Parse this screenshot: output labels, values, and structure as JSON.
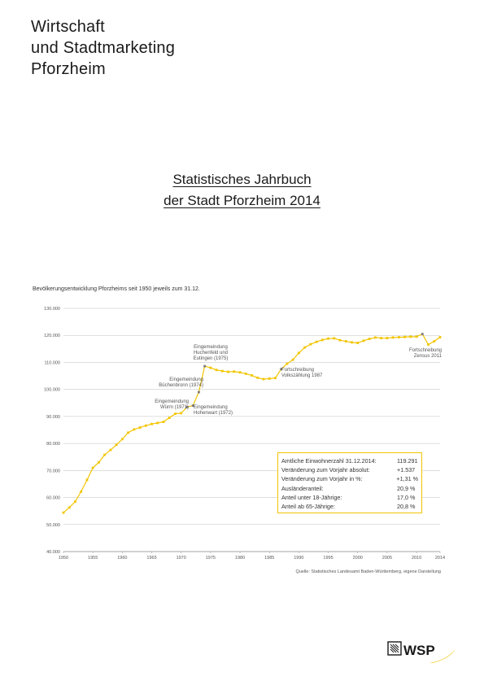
{
  "header": {
    "org_lines": [
      "Wirtschaft",
      "und Stadtmarketing",
      "Pforzheim"
    ]
  },
  "document": {
    "title_lines": [
      "Statistisches Jahrbuch",
      "der Stadt Pforzheim 2014"
    ]
  },
  "chart_caption": "Bevölkerungsentwicklung Pforzheims seit 1950 jeweils zum 31.12.",
  "chart_data": {
    "type": "line",
    "title": "",
    "xlabel": "",
    "ylabel": "",
    "x_ticks": [
      "1950",
      "1955",
      "1960",
      "1965",
      "1970",
      "1975",
      "1980",
      "1985",
      "1990",
      "1995",
      "2000",
      "2005",
      "2010",
      "2014"
    ],
    "y_ticks": [
      "40.000",
      "50.000",
      "60.000",
      "70.000",
      "80.000",
      "90.000",
      "100.000",
      "110.000",
      "120.000",
      "130.000"
    ],
    "ylim": [
      40000,
      130000
    ],
    "xlim": [
      1950,
      2014
    ],
    "grid": true,
    "series_color": "#f2c500",
    "marker_color_special": "#7a7a7a",
    "series": [
      {
        "x": [
          1950,
          1951,
          1952,
          1953,
          1954,
          1955,
          1956,
          1957,
          1958,
          1959,
          1960,
          1961,
          1962,
          1963,
          1964,
          1965,
          1966,
          1967,
          1968,
          1969,
          1970,
          1971,
          1972,
          1973,
          1974,
          1975,
          1976,
          1977,
          1978,
          1979,
          1980,
          1981,
          1982,
          1983,
          1984,
          1985,
          1986,
          1987,
          1988,
          1989,
          1990,
          1991,
          1992,
          1993,
          1994,
          1995,
          1996,
          1997,
          1998,
          1999,
          2000,
          2001,
          2002,
          2003,
          2004,
          2005,
          2006,
          2007,
          2008,
          2009,
          2010,
          2011,
          2012,
          2013,
          2014
        ],
        "y": [
          54400,
          56300,
          58500,
          62200,
          66500,
          71000,
          73000,
          75800,
          77600,
          79500,
          81600,
          84000,
          85200,
          85900,
          86600,
          87200,
          87600,
          88000,
          89500,
          91000,
          91200,
          93500,
          94000,
          99000,
          108600,
          108000,
          107200,
          106800,
          106500,
          106600,
          106300,
          105800,
          105200,
          104300,
          103800,
          104000,
          104200,
          107500,
          109500,
          111000,
          113500,
          115500,
          116700,
          117600,
          118300,
          118800,
          118900,
          118200,
          117800,
          117400,
          117200,
          118000,
          118700,
          119200,
          119000,
          119000,
          119200,
          119300,
          119400,
          119500,
          119500,
          120500,
          116600,
          117800,
          119300
        ],
        "special_points": [
          1971,
          1972,
          1973,
          1974,
          1987,
          2011
        ]
      }
    ],
    "annotations": [
      {
        "lines": [
          "Eingemeindung",
          "Huchenfeld und",
          "Eutingen (1975)"
        ]
      },
      {
        "lines": [
          "Eingemeindung",
          "Büchenbronn (1974)"
        ]
      },
      {
        "lines": [
          "Eingemeindung",
          "Würm (1971)"
        ]
      },
      {
        "lines": [
          "Eingemeindung",
          "Hohenwart (1972)"
        ]
      },
      {
        "lines": [
          "Fortschreibung",
          "Volkszählung 1987"
        ]
      },
      {
        "lines": [
          "Fortschreibung",
          "Zensus 2011"
        ]
      }
    ]
  },
  "info_box": {
    "rows": [
      {
        "label": "Amtliche Einwohnerzahl 31.12.2014:",
        "value": "119.291"
      },
      {
        "label": "Veränderung zum Vorjahr absolut:",
        "value": "+1.537"
      },
      {
        "label": "Veränderung zum Vorjahr in %:",
        "value": "+1,31 %"
      },
      {
        "label": "Ausländeranteil:",
        "value": "20,9 %"
      },
      {
        "label": "Anteil unter 18-Jährige:",
        "value": "17,0 %"
      },
      {
        "label": "Anteil ab 65-Jährige:",
        "value": "20,8 %"
      }
    ]
  },
  "source": "Quelle: Statistisches Landesamt Baden-Württemberg, eigene Darstellung",
  "logo": {
    "text": "WSP",
    "icon": "wsp-logo-icon",
    "accent": "#f2c500"
  }
}
